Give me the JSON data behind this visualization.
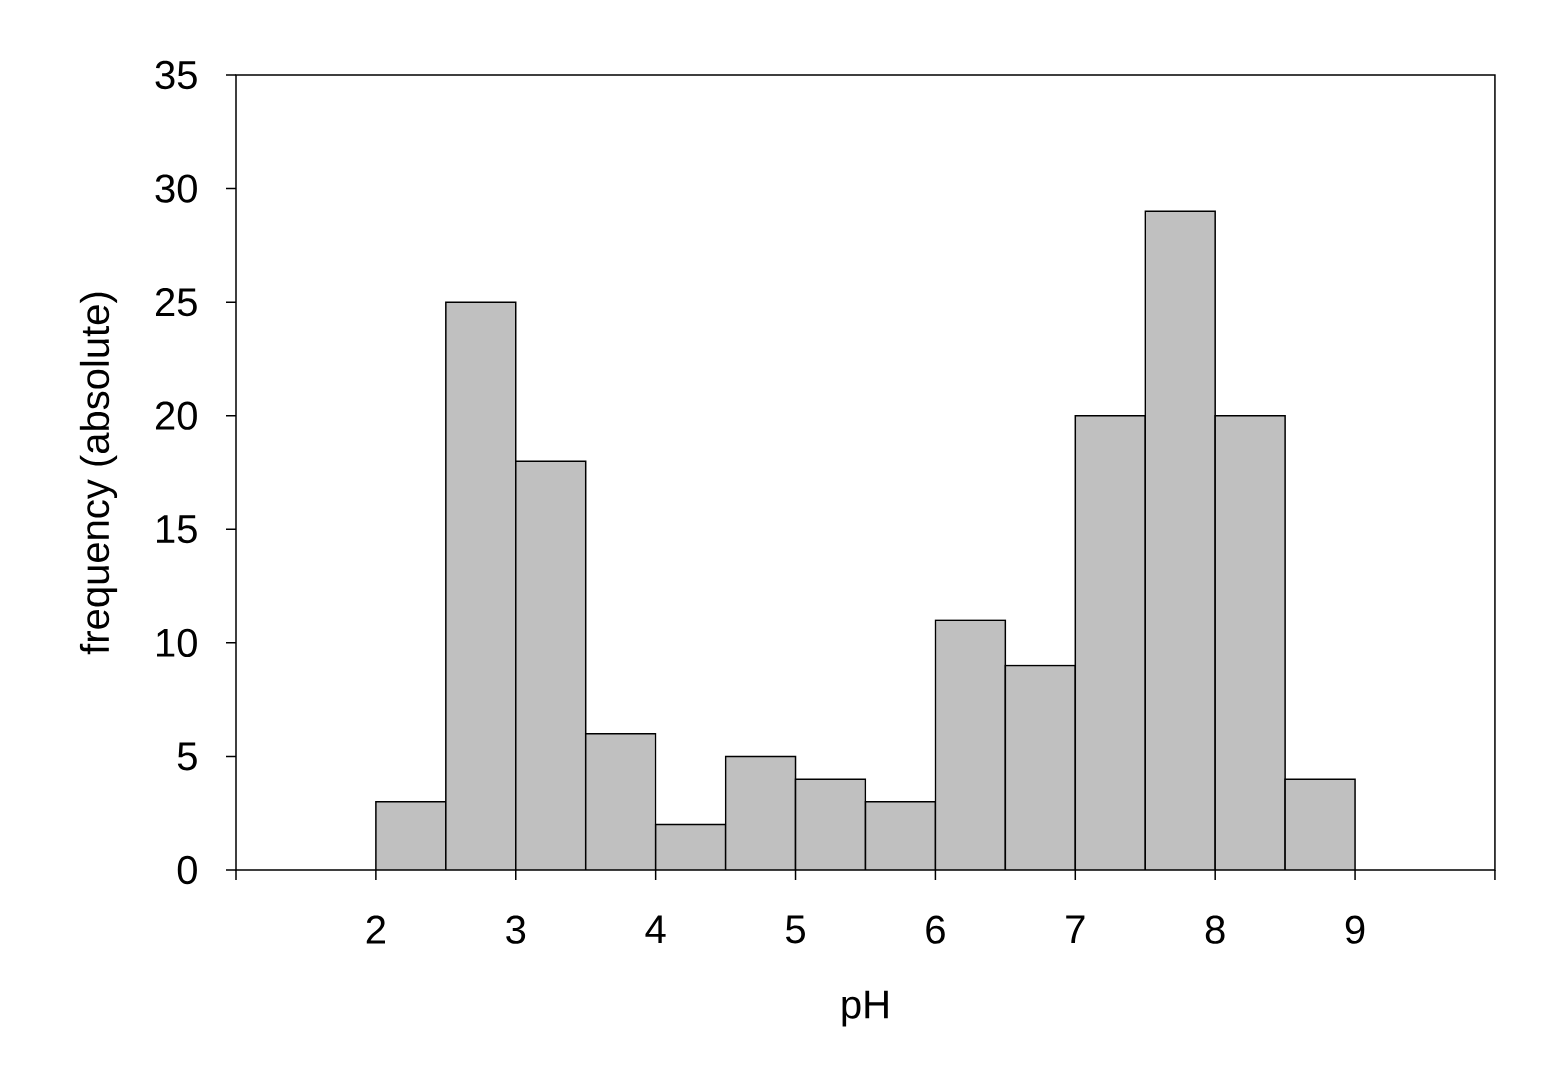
{
  "chart_data": {
    "type": "histogram",
    "xlabel": "pH",
    "ylabel": "frequency (absolute)",
    "bins": [
      2,
      2.5,
      3,
      3.5,
      4,
      4.5,
      5,
      5.5,
      6,
      6.5,
      7,
      7.5,
      8,
      8.5,
      9
    ],
    "values": [
      3,
      25,
      18,
      6,
      2,
      5,
      4,
      3,
      11,
      9,
      20,
      29,
      20,
      4
    ],
    "color": "#c0c0c0",
    "xlim": [
      1,
      10
    ],
    "ylim": [
      0,
      35
    ],
    "xticks": [
      {
        "value": 1,
        "label": null
      },
      2,
      3,
      4,
      5,
      6,
      7,
      8,
      9,
      {
        "value": 10,
        "label": null
      }
    ],
    "yticks": [
      0,
      5,
      10,
      15,
      20,
      25,
      30,
      35
    ]
  }
}
